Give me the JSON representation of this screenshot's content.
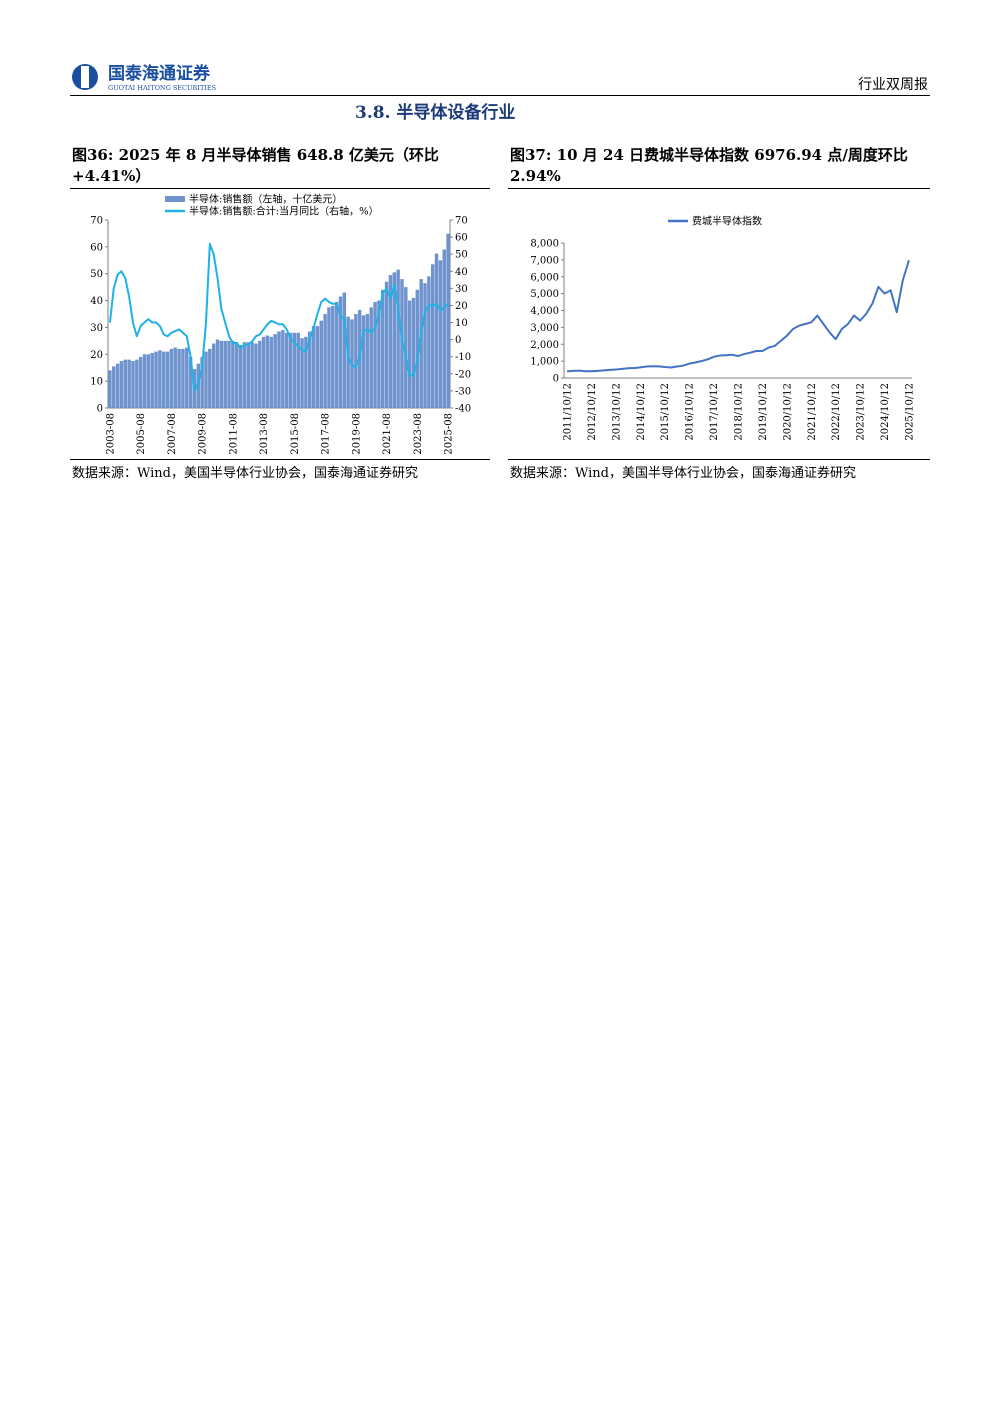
{
  "header": {
    "logo_cn": "国泰海通证券",
    "logo_en": "GUOTAI HAITONG SECURITIES",
    "report_type": "行业双周报"
  },
  "section_title": "3.8.  半导体设备行业",
  "chart_data": [
    {
      "type": "bar",
      "title": "图36:  2025 年 8 月半导体销售 648.8 亿美元（环比+4.41%）",
      "source": "数据来源：Wind，美国半导体行业协会，国泰海通证券研究",
      "legend": "top-left",
      "categories": [
        "2003-08",
        null,
        null,
        null,
        null,
        null,
        null,
        null,
        "2005-08",
        null,
        null,
        null,
        null,
        null,
        null,
        null,
        "2007-08",
        null,
        null,
        null,
        null,
        null,
        null,
        null,
        "2009-08",
        null,
        null,
        null,
        null,
        null,
        null,
        null,
        "2011-08",
        null,
        null,
        null,
        null,
        null,
        null,
        null,
        "2013-08",
        null,
        null,
        null,
        null,
        null,
        null,
        null,
        "2015-08",
        null,
        null,
        null,
        null,
        null,
        null,
        null,
        "2017-08",
        null,
        null,
        null,
        null,
        null,
        null,
        null,
        "2019-08",
        null,
        null,
        null,
        null,
        null,
        null,
        null,
        "2021-08",
        null,
        null,
        null,
        null,
        null,
        null,
        null,
        "2023-08",
        null,
        null,
        null,
        null,
        null,
        null,
        null,
        "2025-08"
      ],
      "series": [
        {
          "name": "半导体:销售额（左轴，十亿美元）",
          "type": "bar",
          "color": "#6f93cd",
          "values": [
            14,
            15.5,
            16.5,
            17.5,
            18,
            18,
            17.5,
            18,
            19,
            20,
            20,
            20.5,
            21,
            21.5,
            21,
            21,
            22,
            22.5,
            22,
            22,
            22.5,
            19,
            14.5,
            16.5,
            19,
            21,
            22,
            24,
            25.5,
            25,
            25,
            25,
            25,
            24.5,
            23.5,
            24.5,
            24.5,
            24.5,
            24,
            25,
            26.5,
            27,
            26.5,
            27.5,
            28.5,
            29,
            28,
            28,
            28,
            28,
            26,
            26.5,
            28.5,
            30.5,
            30.5,
            32.5,
            35,
            37.5,
            38,
            39.5,
            41.5,
            43,
            34,
            33,
            35,
            36.5,
            34.5,
            35,
            37.5,
            39.5,
            40,
            44,
            47,
            49.5,
            50.5,
            51.5,
            48,
            45,
            40,
            41,
            44,
            48,
            46.5,
            49,
            53.5,
            57.5,
            55,
            59,
            64.9
          ]
        },
        {
          "name": "半导体:销售额:合计:当月同比（右轴，%）",
          "type": "line",
          "axis": "y2",
          "color": "#1fb2e6",
          "values": [
            10,
            30,
            38,
            40,
            36,
            25,
            10,
            2,
            8,
            10,
            12,
            10,
            10,
            8,
            3,
            2,
            4,
            5,
            6,
            4,
            2,
            -10,
            -30,
            -25,
            -16,
            10,
            56,
            50,
            36,
            18,
            10,
            2,
            -2,
            -2,
            -5,
            -3,
            -3,
            -1,
            2,
            3,
            6,
            9,
            11,
            10,
            9,
            9,
            6,
            1,
            -2,
            -4,
            -6,
            -7,
            0,
            7,
            15,
            22,
            24,
            22,
            21,
            21,
            14,
            12,
            -10,
            -15,
            -16,
            -10,
            5,
            6,
            4,
            7,
            15,
            27,
            30,
            24,
            32,
            18,
            0,
            -9,
            -21,
            -21,
            -12,
            5,
            16,
            20,
            20,
            21,
            17,
            19,
            21
          ]
        }
      ],
      "ylim": [
        0,
        70
      ],
      "yticks": [
        0,
        10,
        20,
        30,
        40,
        50,
        60,
        70
      ],
      "y2lim": [
        -40,
        70
      ],
      "y2ticks": [
        -40,
        -30,
        -20,
        -10,
        0,
        10,
        20,
        30,
        40,
        50,
        60,
        70
      ],
      "grid": false
    },
    {
      "type": "line",
      "title": "图37:  10 月 24 日费城半导体指数 6976.94 点/周度环比2.94%",
      "source": "数据来源：Wind，美国半导体行业协会，国泰海通证券研究",
      "legend": "top",
      "categories": [
        "2011/10/12",
        null,
        null,
        null,
        "2012/10/12",
        null,
        null,
        null,
        "2013/10/12",
        null,
        null,
        null,
        "2014/10/12",
        null,
        null,
        null,
        "2015/10/12",
        null,
        null,
        null,
        "2016/10/12",
        null,
        null,
        null,
        "2017/10/12",
        null,
        null,
        null,
        "2018/10/12",
        null,
        null,
        null,
        "2019/10/12",
        null,
        null,
        null,
        "2020/10/12",
        null,
        null,
        null,
        "2021/10/12",
        null,
        null,
        null,
        "2022/10/12",
        null,
        null,
        null,
        "2023/10/12",
        null,
        null,
        null,
        "2024/10/12",
        null,
        null,
        null,
        "2025/10/12"
      ],
      "series": [
        {
          "name": "费城半导体指数",
          "type": "line",
          "color": "#4472c4",
          "values": [
            390,
            420,
            440,
            400,
            400,
            420,
            450,
            480,
            500,
            540,
            580,
            590,
            630,
            680,
            700,
            690,
            650,
            620,
            680,
            730,
            850,
            920,
            1000,
            1100,
            1250,
            1330,
            1350,
            1380,
            1300,
            1420,
            1500,
            1600,
            1600,
            1800,
            1900,
            2200,
            2500,
            2900,
            3100,
            3200,
            3300,
            3700,
            3200,
            2700,
            2300,
            2900,
            3200,
            3700,
            3400,
            3800,
            4400,
            5400,
            5000,
            5200,
            3900,
            5800,
            6976.94
          ]
        }
      ],
      "ylim": [
        0,
        8000
      ],
      "yticks": [
        0,
        {
          "value": 1000,
          "label": "1,000"
        },
        {
          "value": 2000,
          "label": "2,000"
        },
        {
          "value": 3000,
          "label": "3,000"
        },
        {
          "value": 4000,
          "label": "4,000"
        },
        {
          "value": 5000,
          "label": "5,000"
        },
        {
          "value": 6000,
          "label": "6,000"
        },
        {
          "value": 7000,
          "label": "7,000"
        },
        {
          "value": 8000,
          "label": "8,000"
        }
      ],
      "grid": false
    }
  ]
}
